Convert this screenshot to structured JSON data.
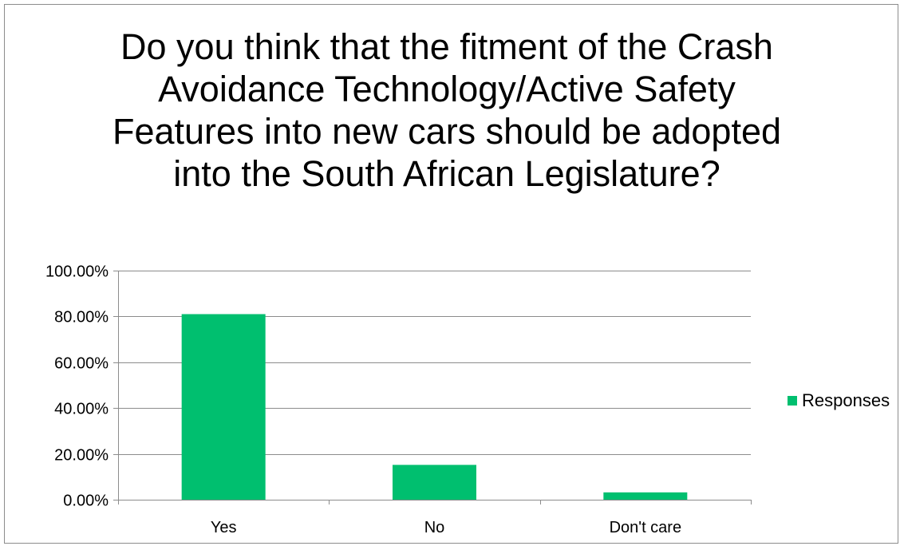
{
  "chart_data": {
    "type": "bar",
    "title": "Do you think that the fitment of the Crash Avoidance Technology/Active Safety Features into new cars should be adopted into the South African Legislature?",
    "categories": [
      "Yes",
      "No",
      "Don't care"
    ],
    "series": [
      {
        "name": "Responses",
        "values": [
          81.0,
          15.2,
          3.2
        ]
      }
    ],
    "ylim": [
      0,
      100
    ],
    "yticks": [
      0,
      20,
      40,
      60,
      80,
      100
    ],
    "ytick_labels": [
      "0.00%",
      "20.00%",
      "40.00%",
      "60.00%",
      "80.00%",
      "100.00%"
    ],
    "grid": true,
    "legend_position": "right",
    "bar_color": "#00BF6F",
    "grid_color": "#8c8c8c"
  }
}
